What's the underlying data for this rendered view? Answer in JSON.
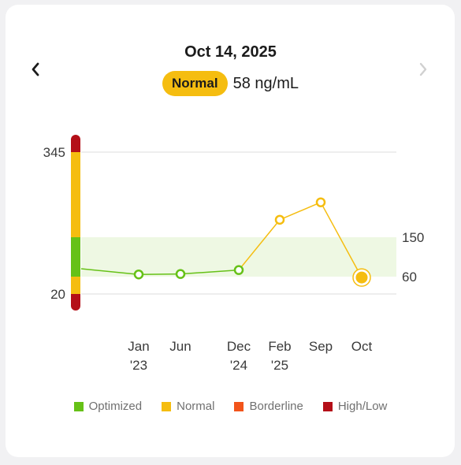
{
  "header": {
    "date": "Oct 14, 2025",
    "status": "Normal",
    "reading": "58 ng/mL"
  },
  "colors": {
    "optimized": "#66c117",
    "normal": "#f5bd10",
    "borderline": "#f2541b",
    "high_low": "#b40f18"
  },
  "chart_data": {
    "type": "line",
    "y_scale": "nonlinear band scale",
    "left_ticks": [
      "345",
      "20"
    ],
    "right_ticks": [
      "150",
      "60"
    ],
    "optimized_band": [
      60,
      150
    ],
    "x_labels": [
      [
        "Jan",
        "'23"
      ],
      [
        "Jun",
        ""
      ],
      [
        "Dec",
        "'24"
      ],
      [
        "Feb",
        "'25"
      ],
      [
        "Sep",
        ""
      ],
      [
        "Oct",
        ""
      ]
    ],
    "series": [
      {
        "values": [
          65,
          66,
          75,
          190,
          230,
          58
        ],
        "in_range": [
          "optimized",
          "optimized",
          "optimized",
          "normal",
          "normal",
          "normal"
        ]
      }
    ],
    "leading_value": 78,
    "selected_index": 5
  },
  "legend": [
    {
      "label": "Optimized",
      "color": "#66c117"
    },
    {
      "label": "Normal",
      "color": "#f5bd10"
    },
    {
      "label": "Borderline",
      "color": "#f2541b"
    },
    {
      "label": "High/Low",
      "color": "#b40f18"
    }
  ]
}
